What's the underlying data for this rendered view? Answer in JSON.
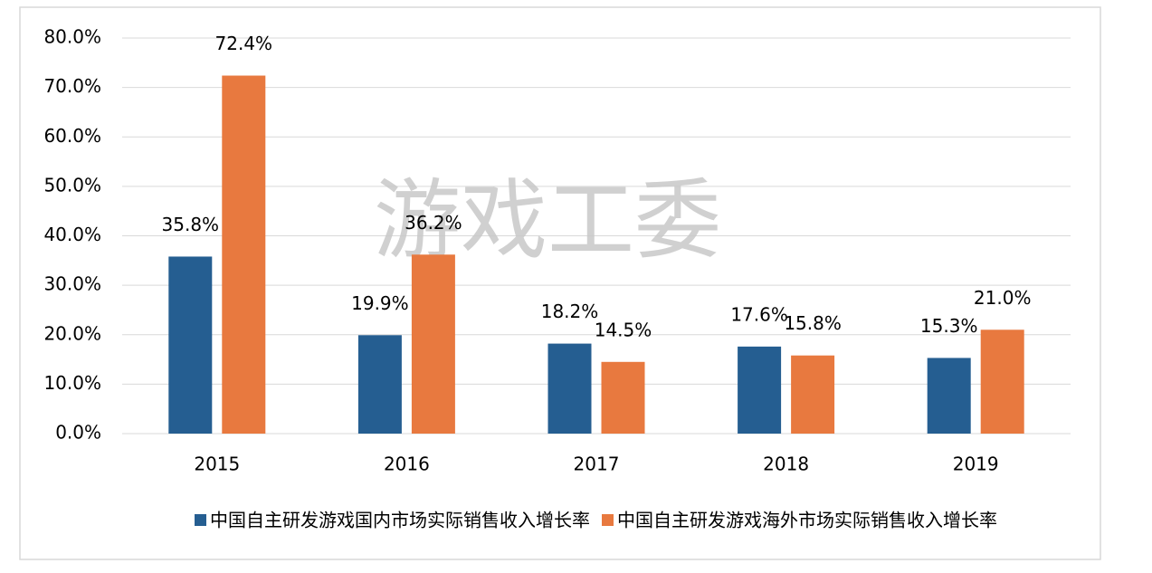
{
  "chart_data": {
    "type": "bar",
    "watermark": "游戏工委",
    "categories": [
      "2015",
      "2016",
      "2017",
      "2018",
      "2019"
    ],
    "series": [
      {
        "name": "中国自主研发游戏国内市场实际销售收入增长率",
        "color": "#255e91",
        "values": [
          35.8,
          19.9,
          18.2,
          17.6,
          15.3
        ],
        "value_labels": [
          "35.8%",
          "19.9%",
          "18.2%",
          "17.6%",
          "15.3%"
        ]
      },
      {
        "name": "中国自主研发游戏海外市场实际销售收入增长率",
        "color": "#e8793f",
        "values": [
          72.4,
          36.2,
          14.5,
          15.8,
          21.0
        ],
        "value_labels": [
          "72.4%",
          "36.2%",
          "14.5%",
          "15.8%",
          "21.0%"
        ]
      }
    ],
    "ylim": [
      0,
      80
    ],
    "yticks": [
      {
        "value": 0,
        "label": "0.0%"
      },
      {
        "value": 10,
        "label": "10.0%"
      },
      {
        "value": 20,
        "label": "20.0%"
      },
      {
        "value": 30,
        "label": "30.0%"
      },
      {
        "value": 40,
        "label": "40.0%"
      },
      {
        "value": 50,
        "label": "50.0%"
      },
      {
        "value": 60,
        "label": "60.0%"
      },
      {
        "value": 70,
        "label": "70.0%"
      },
      {
        "value": 80,
        "label": "80.0%"
      }
    ],
    "grid": true
  }
}
